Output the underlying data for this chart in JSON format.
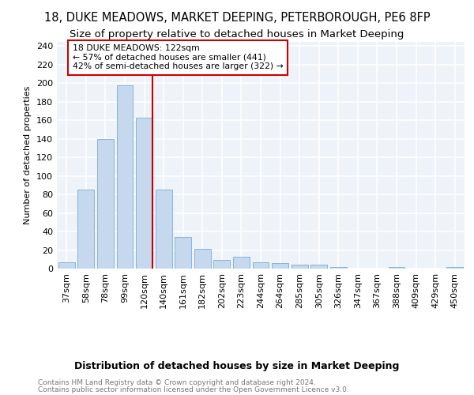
{
  "title": "18, DUKE MEADOWS, MARKET DEEPING, PETERBOROUGH, PE6 8FP",
  "subtitle": "Size of property relative to detached houses in Market Deeping",
  "xlabel": "Distribution of detached houses by size in Market Deeping",
  "ylabel": "Number of detached properties",
  "categories": [
    "37sqm",
    "58sqm",
    "78sqm",
    "99sqm",
    "120sqm",
    "140sqm",
    "161sqm",
    "182sqm",
    "202sqm",
    "223sqm",
    "244sqm",
    "264sqm",
    "285sqm",
    "305sqm",
    "326sqm",
    "347sqm",
    "367sqm",
    "388sqm",
    "409sqm",
    "429sqm",
    "450sqm"
  ],
  "values": [
    7,
    85,
    140,
    198,
    163,
    85,
    34,
    21,
    9,
    13,
    7,
    6,
    4,
    4,
    2,
    0,
    0,
    2,
    0,
    0,
    2
  ],
  "bar_color": "#c5d8ed",
  "bar_edge_color": "#7aadd4",
  "vline_x_index": 4,
  "vline_color": "#cc0000",
  "annotation_line1": "18 DUKE MEADOWS: 122sqm",
  "annotation_line2": "← 57% of detached houses are smaller (441)",
  "annotation_line3": "42% of semi-detached houses are larger (322) →",
  "annotation_box_color": "#cc0000",
  "ylim": [
    0,
    245
  ],
  "yticks": [
    0,
    20,
    40,
    60,
    80,
    100,
    120,
    140,
    160,
    180,
    200,
    220,
    240
  ],
  "footer1": "Contains HM Land Registry data © Crown copyright and database right 2024.",
  "footer2": "Contains public sector information licensed under the Open Government Licence v3.0.",
  "bg_color": "#eef2f9",
  "grid_color": "#ffffff",
  "title_fontsize": 10.5,
  "subtitle_fontsize": 9.5,
  "xlabel_fontsize": 9,
  "ylabel_fontsize": 8,
  "tick_fontsize": 8,
  "footer_fontsize": 6.5
}
